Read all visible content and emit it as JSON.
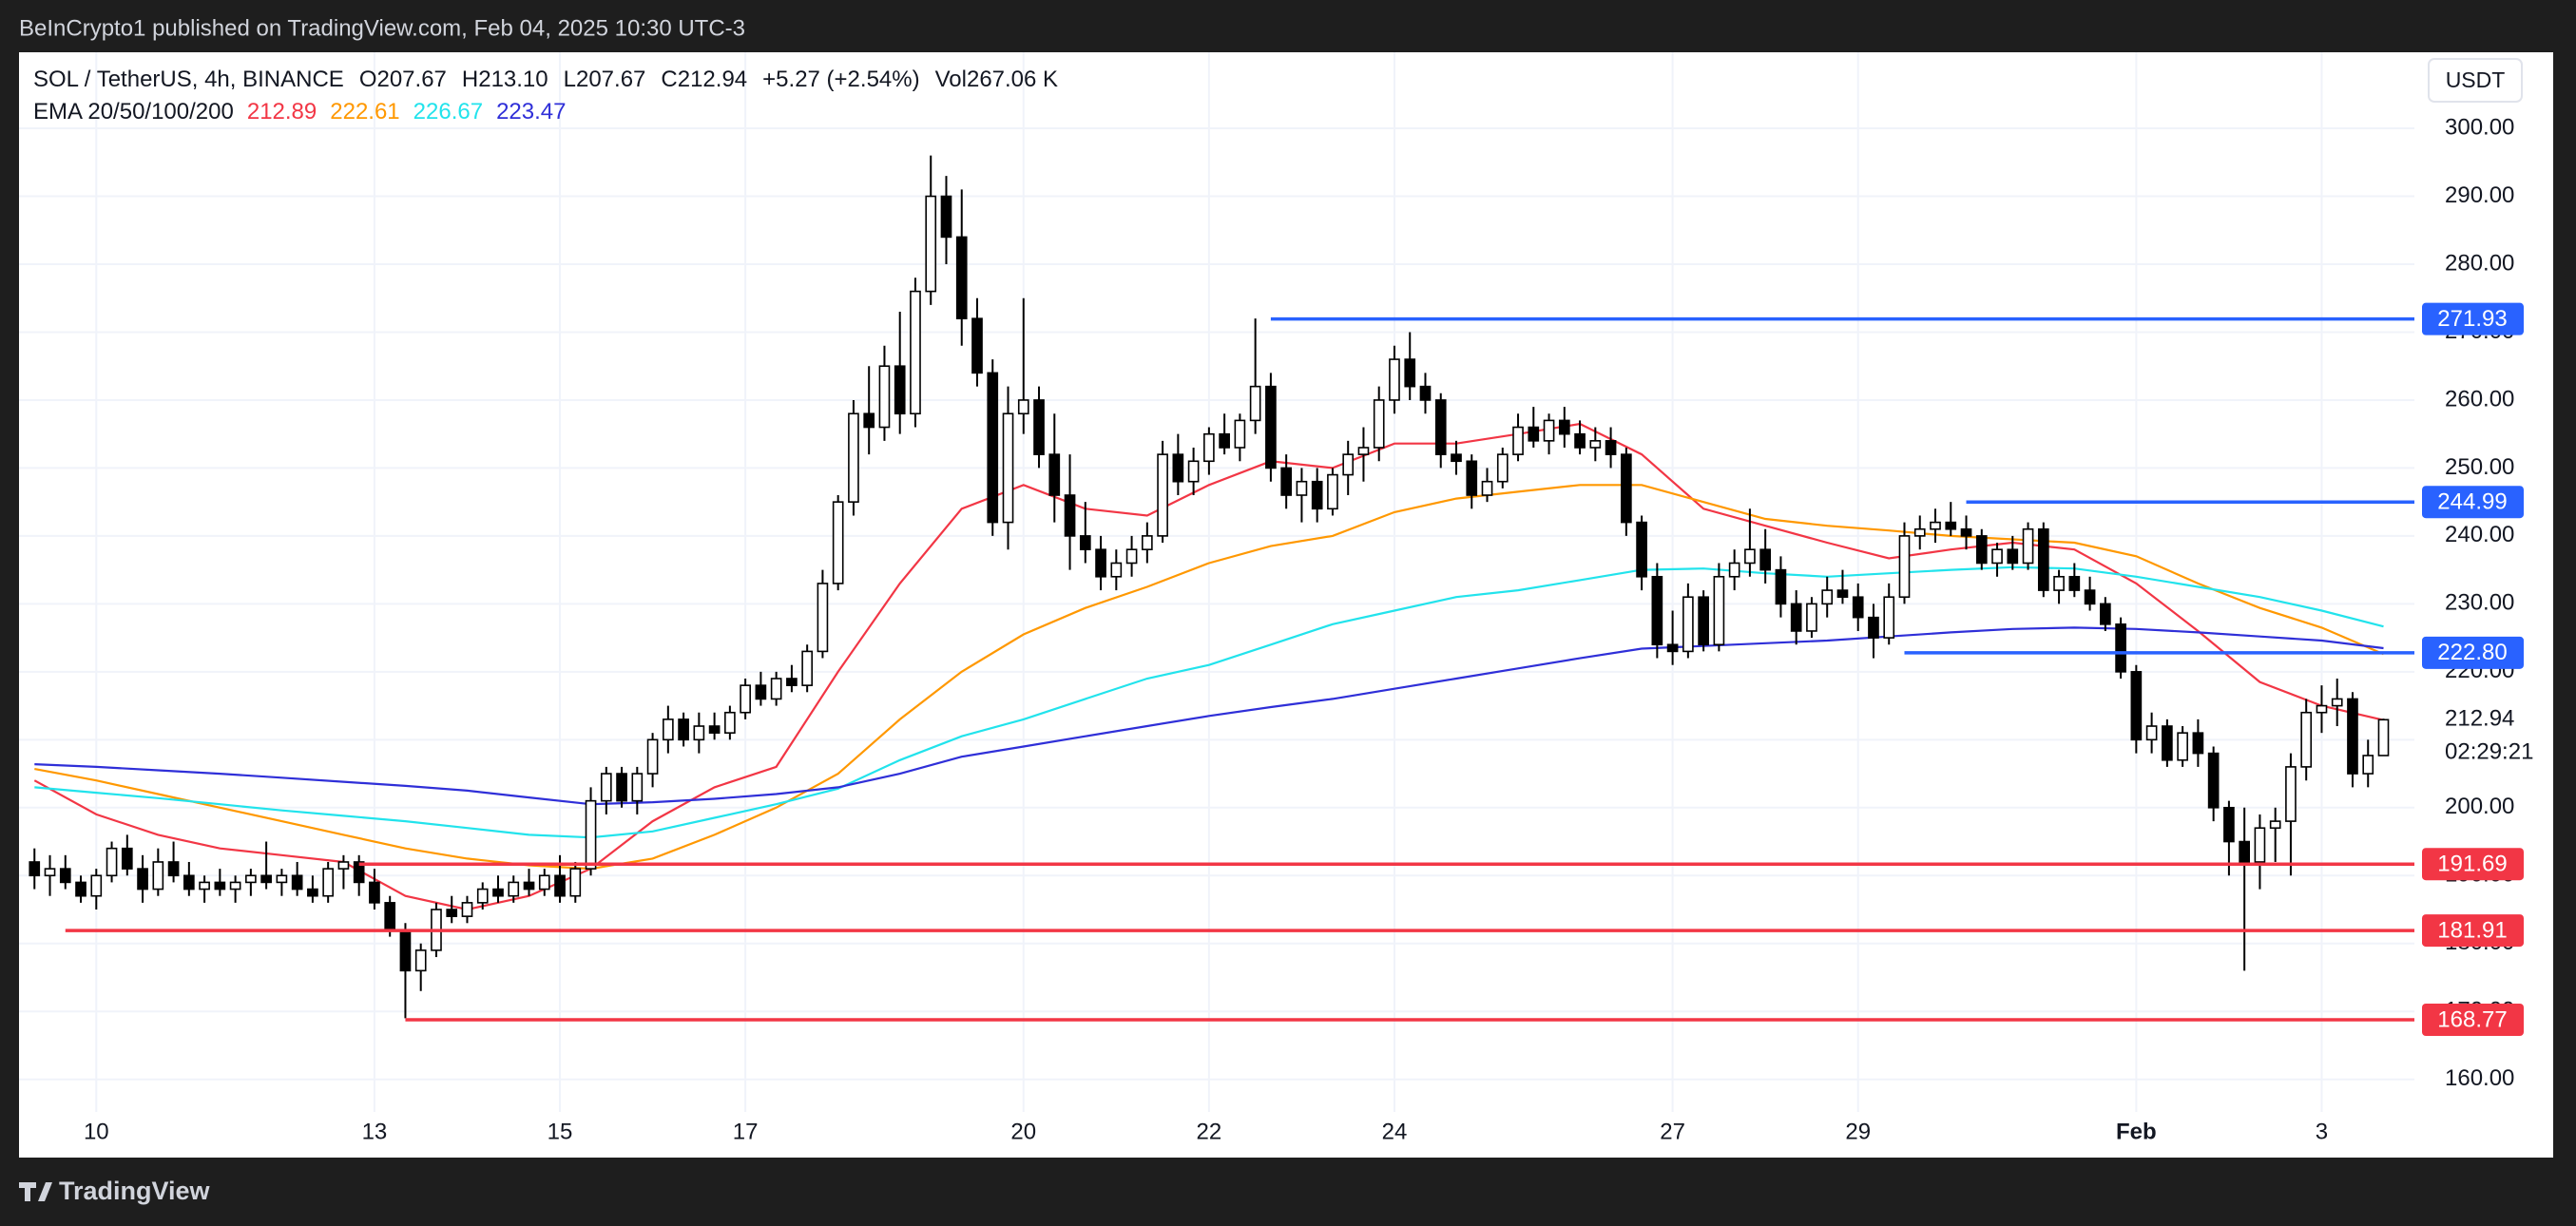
{
  "publish_note": "BeInCrypto1 published on TradingView.com, Feb 04, 2025 10:30 UTC-3",
  "brand": "TradingView",
  "chart_data": {
    "type": "candlestick",
    "symbol": "SOL / TetherUS, 4h, BINANCE",
    "ohlc_text": [
      "O207.67",
      "H213.10",
      "L207.67",
      "C212.94",
      "+5.27 (+2.54%)",
      "Vol267.06 K"
    ],
    "indicator_label": "EMA 20/50/100/200",
    "currency": "USDT",
    "countdown": "02:29:21",
    "up_color": "#ffffff",
    "down_color": "#000000",
    "outline_color": "#000000",
    "grid": true,
    "xlim": [
      -1,
      154
    ],
    "xticks": [
      {
        "value": 4,
        "label": "10"
      },
      {
        "value": 22,
        "label": "13"
      },
      {
        "value": 34,
        "label": "15"
      },
      {
        "value": 46,
        "label": "17"
      },
      {
        "value": 64,
        "label": "20"
      },
      {
        "value": 76,
        "label": "22"
      },
      {
        "value": 88,
        "label": "24"
      },
      {
        "value": 106,
        "label": "27"
      },
      {
        "value": 118,
        "label": "29"
      },
      {
        "value": 136,
        "label": "Feb"
      },
      {
        "value": 148,
        "label": "3"
      }
    ],
    "ylim": [
      155.2,
      311.2
    ],
    "yticks": [
      {
        "value": 160,
        "label": "160.00"
      },
      {
        "value": 170,
        "label": "170.00"
      },
      {
        "value": 180,
        "label": "180.00"
      },
      {
        "value": 190,
        "label": "190.00"
      },
      {
        "value": 200,
        "label": "200.00"
      },
      {
        "value": 210,
        "label": "210.00"
      },
      {
        "value": 220,
        "label": "220.00"
      },
      {
        "value": 230,
        "label": "230.00"
      },
      {
        "value": 240,
        "label": "240.00"
      },
      {
        "value": 250,
        "label": "250.00"
      },
      {
        "value": 260,
        "label": "260.00"
      },
      {
        "value": 270,
        "label": "270.00"
      },
      {
        "value": 280,
        "label": "280.00"
      },
      {
        "value": 290,
        "label": "290.00"
      },
      {
        "value": 300,
        "label": "300.00"
      }
    ],
    "candles": [
      [
        192,
        194,
        188,
        190
      ],
      [
        190,
        193,
        187,
        191
      ],
      [
        191,
        193,
        188,
        189
      ],
      [
        189,
        190,
        186,
        187
      ],
      [
        187,
        191,
        185,
        190
      ],
      [
        190,
        195,
        189,
        194
      ],
      [
        194,
        196,
        190,
        191
      ],
      [
        191,
        193,
        186,
        188
      ],
      [
        188,
        194,
        187,
        192
      ],
      [
        192,
        195,
        189,
        190
      ],
      [
        190,
        192,
        187,
        188
      ],
      [
        188,
        190,
        186,
        189
      ],
      [
        189,
        191,
        187,
        188
      ],
      [
        188,
        190,
        186,
        189
      ],
      [
        189,
        191,
        187,
        190
      ],
      [
        190,
        195,
        188,
        189
      ],
      [
        189,
        191,
        187,
        190
      ],
      [
        190,
        192,
        187,
        188
      ],
      [
        188,
        190,
        186,
        187
      ],
      [
        187,
        192,
        186,
        191
      ],
      [
        191,
        193,
        188,
        192
      ],
      [
        192,
        193,
        187,
        189
      ],
      [
        189,
        191,
        185,
        186
      ],
      [
        186,
        187,
        181,
        182
      ],
      [
        182,
        183,
        169,
        176
      ],
      [
        176,
        180,
        173,
        179
      ],
      [
        179,
        186,
        178,
        185
      ],
      [
        185,
        187,
        183,
        184
      ],
      [
        184,
        187,
        183,
        186
      ],
      [
        186,
        189,
        185,
        188
      ],
      [
        188,
        190,
        186,
        187
      ],
      [
        187,
        190,
        186,
        189
      ],
      [
        189,
        191,
        187,
        188
      ],
      [
        188,
        191,
        187,
        190
      ],
      [
        190,
        193,
        186,
        187
      ],
      [
        187,
        192,
        186,
        191
      ],
      [
        191,
        203,
        190,
        201
      ],
      [
        201,
        206,
        199,
        205
      ],
      [
        205,
        206,
        200,
        201
      ],
      [
        201,
        206,
        199,
        205
      ],
      [
        205,
        211,
        203,
        210
      ],
      [
        210,
        215,
        208,
        213
      ],
      [
        213,
        214,
        209,
        210
      ],
      [
        210,
        214,
        208,
        212
      ],
      [
        212,
        214,
        210,
        211
      ],
      [
        211,
        215,
        210,
        214
      ],
      [
        214,
        219,
        213,
        218
      ],
      [
        218,
        220,
        215,
        216
      ],
      [
        216,
        220,
        215,
        219
      ],
      [
        219,
        221,
        217,
        218
      ],
      [
        218,
        224,
        217,
        223
      ],
      [
        223,
        235,
        222,
        233
      ],
      [
        233,
        246,
        232,
        245
      ],
      [
        245,
        260,
        243,
        258
      ],
      [
        258,
        265,
        252,
        256
      ],
      [
        256,
        268,
        254,
        265
      ],
      [
        265,
        273,
        255,
        258
      ],
      [
        258,
        278,
        256,
        276
      ],
      [
        276,
        296,
        274,
        290
      ],
      [
        290,
        293,
        280,
        284
      ],
      [
        284,
        291,
        268,
        272
      ],
      [
        272,
        275,
        262,
        264
      ],
      [
        264,
        266,
        240,
        242
      ],
      [
        242,
        262,
        238,
        258
      ],
      [
        258,
        275,
        255,
        260
      ],
      [
        260,
        262,
        250,
        252
      ],
      [
        252,
        258,
        242,
        246
      ],
      [
        246,
        252,
        235,
        240
      ],
      [
        240,
        245,
        236,
        238
      ],
      [
        238,
        240,
        232,
        234
      ],
      [
        234,
        238,
        232,
        236
      ],
      [
        236,
        240,
        234,
        238
      ],
      [
        238,
        242,
        236,
        240
      ],
      [
        240,
        254,
        239,
        252
      ],
      [
        252,
        255,
        246,
        248
      ],
      [
        248,
        253,
        246,
        251
      ],
      [
        251,
        256,
        249,
        255
      ],
      [
        255,
        258,
        252,
        253
      ],
      [
        253,
        258,
        251,
        257
      ],
      [
        257,
        272,
        255,
        262
      ],
      [
        262,
        264,
        248,
        250
      ],
      [
        250,
        252,
        244,
        246
      ],
      [
        246,
        250,
        242,
        248
      ],
      [
        248,
        250,
        242,
        244
      ],
      [
        244,
        250,
        243,
        249
      ],
      [
        249,
        254,
        246,
        252
      ],
      [
        252,
        256,
        248,
        253
      ],
      [
        253,
        262,
        251,
        260
      ],
      [
        260,
        268,
        258,
        266
      ],
      [
        266,
        270,
        260,
        262
      ],
      [
        262,
        264,
        258,
        260
      ],
      [
        260,
        261,
        250,
        252
      ],
      [
        252,
        254,
        249,
        251
      ],
      [
        251,
        252,
        244,
        246
      ],
      [
        246,
        250,
        245,
        248
      ],
      [
        248,
        253,
        247,
        252
      ],
      [
        252,
        258,
        251,
        256
      ],
      [
        256,
        259,
        253,
        254
      ],
      [
        254,
        258,
        252,
        257
      ],
      [
        257,
        259,
        253,
        255
      ],
      [
        255,
        257,
        252,
        253
      ],
      [
        253,
        256,
        251,
        254
      ],
      [
        254,
        256,
        250,
        252
      ],
      [
        252,
        253,
        240,
        242
      ],
      [
        242,
        243,
        232,
        234
      ],
      [
        234,
        236,
        222,
        224
      ],
      [
        224,
        229,
        221,
        223
      ],
      [
        223,
        233,
        222,
        231
      ],
      [
        231,
        232,
        223,
        224
      ],
      [
        224,
        236,
        223,
        234
      ],
      [
        234,
        238,
        232,
        236
      ],
      [
        236,
        244,
        234,
        238
      ],
      [
        238,
        241,
        233,
        235
      ],
      [
        235,
        237,
        228,
        230
      ],
      [
        230,
        232,
        224,
        226
      ],
      [
        226,
        231,
        225,
        230
      ],
      [
        230,
        234,
        228,
        232
      ],
      [
        232,
        235,
        230,
        231
      ],
      [
        231,
        233,
        226,
        228
      ],
      [
        228,
        230,
        222,
        225
      ],
      [
        225,
        233,
        224,
        231
      ],
      [
        231,
        242,
        230,
        240
      ],
      [
        240,
        243,
        238,
        241
      ],
      [
        241,
        244,
        239,
        242
      ],
      [
        242,
        245,
        240,
        241
      ],
      [
        241,
        243,
        238,
        240
      ],
      [
        240,
        241,
        235,
        236
      ],
      [
        236,
        239,
        234,
        238
      ],
      [
        238,
        240,
        235,
        236
      ],
      [
        236,
        242,
        235,
        241
      ],
      [
        241,
        242,
        231,
        232
      ],
      [
        232,
        235,
        230,
        234
      ],
      [
        234,
        236,
        231,
        232
      ],
      [
        232,
        234,
        229,
        230
      ],
      [
        230,
        231,
        226,
        227
      ],
      [
        227,
        228,
        219,
        220
      ],
      [
        220,
        221,
        208,
        210
      ],
      [
        210,
        214,
        208,
        212
      ],
      [
        212,
        213,
        206,
        207
      ],
      [
        207,
        212,
        206,
        211
      ],
      [
        211,
        213,
        206,
        208
      ],
      [
        208,
        209,
        198,
        200
      ],
      [
        200,
        201,
        190,
        195
      ],
      [
        195,
        200,
        176,
        192
      ],
      [
        192,
        199,
        188,
        197
      ],
      [
        197,
        200,
        192,
        198
      ],
      [
        198,
        208,
        190,
        206
      ],
      [
        206,
        216,
        204,
        214
      ],
      [
        214,
        218,
        211,
        215
      ],
      [
        215,
        219,
        212,
        216
      ],
      [
        216,
        217,
        203,
        205
      ],
      [
        205,
        210,
        203,
        207.67
      ],
      [
        207.67,
        213.1,
        207.67,
        212.94
      ]
    ],
    "ema_x": [
      0,
      4,
      8,
      12,
      16,
      20,
      24,
      28,
      32,
      36,
      40,
      44,
      48,
      52,
      56,
      60,
      64,
      68,
      72,
      76,
      80,
      84,
      88,
      92,
      96,
      100,
      104,
      108,
      112,
      116,
      120,
      124,
      128,
      132,
      136,
      140,
      144,
      148,
      152
    ],
    "series": [
      {
        "color": "#f23645",
        "values": [
          204,
          199,
          196,
          194,
          193,
          192,
          187,
          185,
          187,
          191,
          198,
          203,
          206,
          220,
          233,
          244,
          247.5,
          244,
          243,
          247.5,
          251,
          250,
          253.6,
          253.6,
          255,
          256.5,
          252,
          244,
          241.5,
          239,
          236.7,
          238,
          239,
          238,
          233,
          226,
          218.5,
          215,
          212.89
        ]
      },
      {
        "color": "#ff9800",
        "values": [
          205.7,
          204,
          202,
          200,
          198,
          196,
          194,
          192.5,
          191.5,
          191,
          192.5,
          196,
          200,
          205,
          213,
          220,
          225.5,
          229.4,
          232.5,
          236,
          238.5,
          240,
          243.5,
          245.5,
          246.5,
          247.5,
          247.5,
          245,
          242.5,
          241.5,
          240.8,
          240,
          239.5,
          239,
          237,
          233,
          229.4,
          226.5,
          222.61
        ]
      },
      {
        "color": "#22e3ec",
        "values": [
          203,
          202.2,
          201.4,
          200.5,
          199.6,
          198.8,
          198,
          197,
          196,
          195.6,
          196.5,
          198.5,
          200.5,
          202.8,
          207,
          210.5,
          213,
          216,
          219,
          221,
          224,
          227,
          229,
          231,
          232,
          233.5,
          235,
          235.2,
          234.5,
          234,
          234.5,
          235,
          235.4,
          235.2,
          234,
          232.5,
          231,
          229,
          226.67
        ]
      },
      {
        "color": "#2f2fd8",
        "values": [
          206.4,
          206,
          205.5,
          205,
          204.4,
          203.8,
          203.2,
          202.5,
          201.5,
          200.5,
          200.8,
          201.3,
          202,
          203,
          205,
          207.5,
          209,
          210.5,
          212,
          213.5,
          214.8,
          216,
          217.5,
          219,
          220.5,
          222,
          223.4,
          223.8,
          224.2,
          224.6,
          225.2,
          225.8,
          226.3,
          226.5,
          226.3,
          225.8,
          225.2,
          224.6,
          223.47
        ]
      }
    ],
    "levels": [
      {
        "value": 271.93,
        "start": 80,
        "color": "#2962ff"
      },
      {
        "value": 244.99,
        "start": 125,
        "color": "#2962ff"
      },
      {
        "value": 222.8,
        "label": "222.80",
        "start": 121,
        "color": "#2962ff"
      },
      {
        "value": 191.69,
        "start": 21,
        "color": "#f23645"
      },
      {
        "value": 181.91,
        "start": 2,
        "color": "#f23645"
      },
      {
        "value": 168.77,
        "start": 24,
        "color": "#f23645"
      }
    ]
  }
}
